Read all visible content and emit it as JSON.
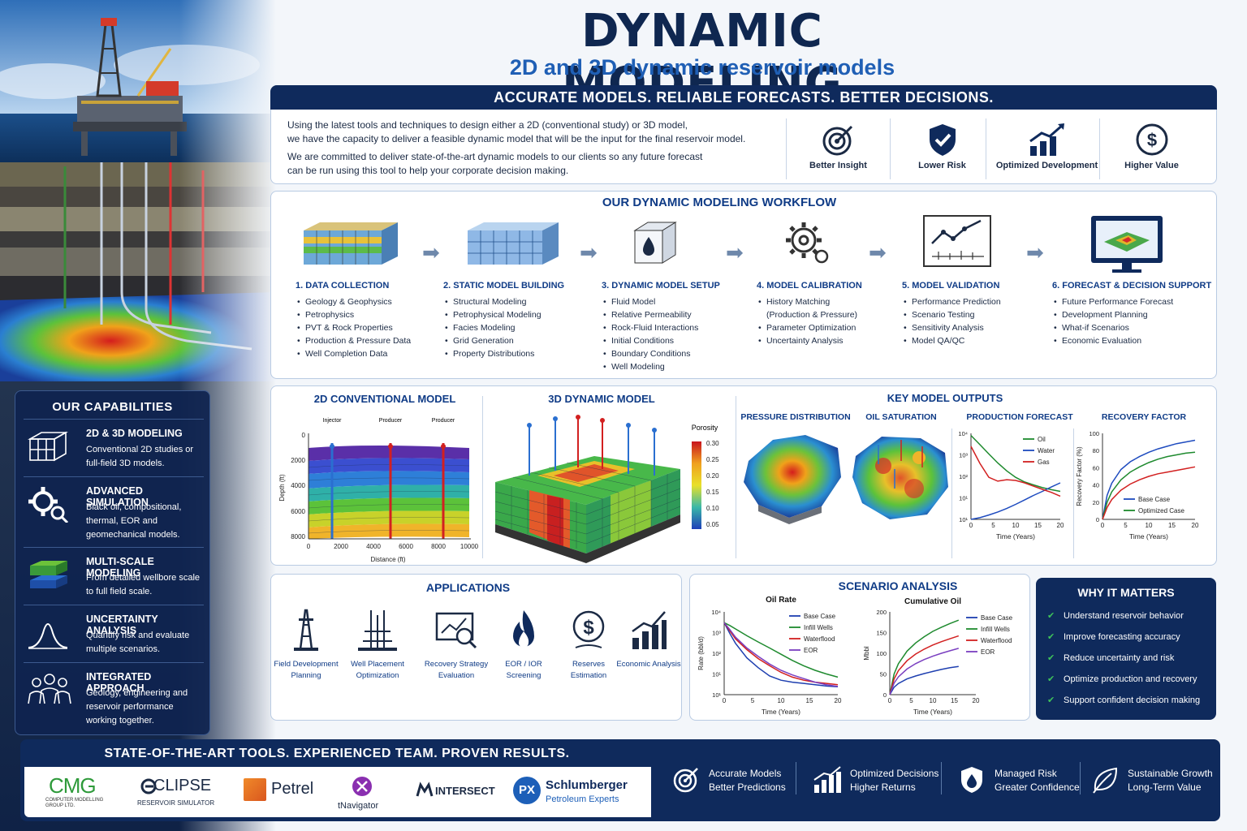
{
  "header": {
    "title": "DYNAMIC MODELING",
    "subtitle": "2D and 3D dynamic reservoir models"
  },
  "intro": {
    "banner": "ACCURATE MODELS. RELIABLE FORECASTS. BETTER DECISIONS.",
    "p1a": "Using the latest tools and techniques to design either a 2D (conventional study) or 3D model,",
    "p1b": "we have the capacity to deliver a feasible dynamic model that will be the input for the final reservoir model.",
    "p2a": "We are committed to deliver state-of-the-art dynamic models to our clients so any future forecast",
    "p2b": "can be run using this tool to help your corporate decision making.",
    "benefits": [
      {
        "label": "Better Insight",
        "icon": "target-icon"
      },
      {
        "label": "Lower Risk",
        "icon": "shield-check-icon"
      },
      {
        "label": "Optimized Development",
        "icon": "growth-chart-icon"
      },
      {
        "label": "Higher Value",
        "icon": "dollar-icon"
      }
    ]
  },
  "workflow": {
    "title": "OUR DYNAMIC MODELING WORKFLOW",
    "steps": [
      {
        "title": "1.  DATA COLLECTION",
        "items": [
          "Geology & Geophysics",
          "Petrophysics",
          "PVT & Rock Properties",
          "Production & Pressure Data",
          "Well Completion Data"
        ]
      },
      {
        "title": "2.  STATIC MODEL BUILDING",
        "items": [
          "Structural Modeling",
          "Petrophysical Modeling",
          "Facies Modeling",
          "Grid Generation",
          "Property Distributions"
        ]
      },
      {
        "title": "3.  DYNAMIC MODEL SETUP",
        "items": [
          "Fluid Model",
          "Relative Permeability",
          "Rock-Fluid Interactions",
          "Initial Conditions",
          "Boundary Conditions",
          "Well Modeling"
        ]
      },
      {
        "title": "4.  MODEL CALIBRATION",
        "items": [
          "History Matching",
          "(Production & Pressure)",
          "Parameter Optimization",
          "Uncertainty Analysis"
        ]
      },
      {
        "title": "5.  MODEL VALIDATION",
        "items": [
          "Performance Prediction",
          "Scenario Testing",
          "Sensitivity Analysis",
          "Model QA/QC"
        ]
      },
      {
        "title": "6.  FORECAST & DECISION SUPPORT",
        "items": [
          "Future Performance Forecast",
          "Development Planning",
          "What-if Scenarios",
          "Economic Evaluation"
        ]
      }
    ]
  },
  "models": {
    "conv_title": "2D CONVENTIONAL MODEL",
    "dyn_title": "3D DYNAMIC MODEL",
    "outputs_title": "KEY MODEL OUTPUTS",
    "wells": [
      "Injector",
      "Producer",
      "Producer"
    ],
    "conv_ylabel": "Depth (ft)",
    "conv_xlabel": "Distance (ft)",
    "conv_yticks": [
      "0",
      "2000",
      "4000",
      "6000",
      "8000"
    ],
    "conv_xticks": [
      "0",
      "2000",
      "4000",
      "6000",
      "8000",
      "10000"
    ],
    "porosity_label": "Porosity",
    "porosity_ticks": [
      "0.30",
      "0.25",
      "0.20",
      "0.15",
      "0.10",
      "0.05"
    ],
    "pressure_title": "PRESSURE DISTRIBUTION",
    "saturation_title": "OIL SATURATION",
    "prod_title": "PRODUCTION FORECAST",
    "rf_title": "RECOVERY FACTOR"
  },
  "chart_data": [
    {
      "type": "line",
      "title": "PRODUCTION FORECAST",
      "xlabel": "Time (Years)",
      "ylabel": "Rate (bbl/d)",
      "log_y": true,
      "xlim": [
        0,
        20
      ],
      "ylim": [
        1,
        10000
      ],
      "x_ticks": [
        "0",
        "5",
        "10",
        "15",
        "20"
      ],
      "y_ticks": [
        "10⁴",
        "10³",
        "10²",
        "10¹",
        "10¹"
      ],
      "legend": "top-right",
      "series": [
        {
          "name": "Oil",
          "color": "#1e8a2e",
          "x": [
            0,
            2,
            4,
            6,
            8,
            10,
            12,
            14,
            16,
            18,
            20
          ],
          "y": [
            8000,
            3000,
            1100,
            420,
            180,
            90,
            55,
            40,
            30,
            24,
            20
          ]
        },
        {
          "name": "Water",
          "color": "#1e4bbf",
          "x": [
            0,
            2,
            4,
            6,
            8,
            10,
            12,
            14,
            16,
            18,
            20
          ],
          "y": [
            1,
            1.2,
            1.6,
            2.2,
            3.2,
            5,
            8,
            13,
            20,
            32,
            50
          ]
        },
        {
          "name": "Gas",
          "color": "#d22020",
          "x": [
            0,
            2,
            4,
            6,
            8,
            10,
            12,
            14,
            16,
            18,
            20
          ],
          "y": [
            2500,
            400,
            90,
            60,
            70,
            65,
            50,
            35,
            25,
            18,
            12
          ]
        }
      ]
    },
    {
      "type": "line",
      "title": "RECOVERY FACTOR",
      "xlabel": "Time (Years)",
      "ylabel": "Recovery Factor (%)",
      "xlim": [
        0,
        20
      ],
      "ylim": [
        0,
        100
      ],
      "x_ticks": [
        "0",
        "5",
        "10",
        "15",
        "20"
      ],
      "y_ticks": [
        "0",
        "20",
        "40",
        "60",
        "80",
        "100"
      ],
      "legend": "bottom-right",
      "series": [
        {
          "name": "Base Case",
          "color": "#1e4bbf",
          "x": [
            0,
            1,
            2,
            4,
            6,
            8,
            10,
            12,
            14,
            16,
            18,
            20
          ],
          "y": [
            0,
            28,
            42,
            58,
            67,
            73,
            78,
            82,
            85,
            88,
            90,
            92
          ]
        },
        {
          "name": "Optimized Case",
          "color": "#1e8a2e",
          "x": [
            0,
            1,
            2,
            4,
            6,
            8,
            10,
            12,
            14,
            16,
            18,
            20
          ],
          "y": [
            0,
            20,
            32,
            46,
            55,
            61,
            66,
            70,
            73,
            75,
            77,
            78
          ]
        },
        {
          "name": "",
          "color": "#d22020",
          "x": [
            0,
            1,
            2,
            4,
            6,
            8,
            10,
            12,
            14,
            16,
            18,
            20
          ],
          "y": [
            0,
            14,
            23,
            34,
            41,
            46,
            50,
            53,
            55,
            57,
            59,
            61
          ]
        }
      ]
    },
    {
      "type": "line",
      "title": "Oil Rate",
      "xlabel": "Time (Years)",
      "ylabel": "Rate (bbl/d)",
      "log_y": true,
      "xlim": [
        0,
        20
      ],
      "ylim": [
        1,
        10000
      ],
      "x_ticks": [
        "0",
        "5",
        "10",
        "15",
        "20"
      ],
      "y_ticks": [
        "10⁴",
        "10³",
        "10²",
        "10¹",
        "10¹"
      ],
      "legend": "top-right",
      "series": [
        {
          "name": "Base Case",
          "color": "#1e3fb0",
          "x": [
            0,
            1,
            2,
            4,
            6,
            8,
            10,
            12,
            14,
            16,
            18,
            20
          ],
          "y": [
            3000,
            900,
            300,
            60,
            20,
            8,
            5,
            4,
            3.5,
            3,
            2.6,
            2.4
          ]
        },
        {
          "name": "Infill Wells",
          "color": "#1e8a2e",
          "x": [
            0,
            1,
            2,
            4,
            6,
            8,
            10,
            12,
            14,
            16,
            18,
            20
          ],
          "y": [
            3000,
            2200,
            1500,
            700,
            350,
            180,
            90,
            45,
            25,
            15,
            10,
            7
          ]
        },
        {
          "name": "Waterflood",
          "color": "#d22020",
          "x": [
            0,
            1,
            2,
            4,
            6,
            8,
            10,
            12,
            14,
            16,
            18,
            20
          ],
          "y": [
            3000,
            1200,
            500,
            150,
            55,
            25,
            12,
            7,
            5,
            4,
            3.5,
            3
          ]
        },
        {
          "name": "EOR",
          "color": "#7a3fc0",
          "x": [
            0,
            1,
            2,
            4,
            6,
            8,
            10,
            12,
            14,
            16,
            18,
            20
          ],
          "y": [
            3000,
            1400,
            600,
            180,
            70,
            30,
            15,
            9,
            6,
            4,
            3,
            2.5
          ]
        }
      ]
    },
    {
      "type": "line",
      "title": "Cumulative Oil",
      "xlabel": "Time (Years)",
      "ylabel": "Mbbl",
      "xlim": [
        0,
        20
      ],
      "ylim": [
        0,
        200
      ],
      "x_ticks": [
        "0",
        "5",
        "10",
        "15",
        "20"
      ],
      "y_ticks": [
        "0",
        "50",
        "100",
        "150",
        "200"
      ],
      "legend": "top-right",
      "series": [
        {
          "name": "Base Case",
          "color": "#1e3fb0",
          "x": [
            0,
            1,
            2,
            4,
            6,
            8,
            10,
            12,
            14,
            16
          ],
          "y": [
            0,
            18,
            27,
            38,
            45,
            51,
            56,
            61,
            65,
            68
          ]
        },
        {
          "name": "Infill Wells",
          "color": "#1e8a2e",
          "x": [
            0,
            1,
            2,
            4,
            6,
            8,
            10,
            12,
            14,
            16
          ],
          "y": [
            0,
            50,
            75,
            105,
            125,
            140,
            153,
            163,
            172,
            180
          ]
        },
        {
          "name": "Waterflood",
          "color": "#d22020",
          "x": [
            0,
            1,
            2,
            4,
            6,
            8,
            10,
            12,
            14,
            16
          ],
          "y": [
            0,
            38,
            58,
            82,
            98,
            110,
            120,
            128,
            135,
            142
          ]
        },
        {
          "name": "EOR",
          "color": "#7a3fc0",
          "x": [
            0,
            1,
            2,
            4,
            6,
            8,
            10,
            12,
            14,
            16
          ],
          "y": [
            0,
            28,
            43,
            62,
            75,
            85,
            93,
            100,
            106,
            112
          ]
        }
      ]
    }
  ],
  "capabilities": {
    "title": "OUR CAPABILITIES",
    "items": [
      {
        "title": "2D & 3D MODELING",
        "desc": "Conventional 2D studies or full-field 3D models.",
        "icon": "grid-cube-icon"
      },
      {
        "title": "ADVANCED SIMULATION",
        "desc": "Black oil, compositional, thermal, EOR and geomechanical models.",
        "icon": "gears-icon"
      },
      {
        "title": "MULTI-SCALE MODELING",
        "desc": "From detailed wellbore scale to full field scale.",
        "icon": "layers-icon"
      },
      {
        "title": "UNCERTAINTY ANALYSIS",
        "desc": "Quantify risk and evaluate multiple scenarios.",
        "icon": "bell-curve-icon"
      },
      {
        "title": "INTEGRATED APPROACH",
        "desc": "Geology, engineering and reservoir performance working together.",
        "icon": "team-icon"
      }
    ]
  },
  "applications": {
    "title": "APPLICATIONS",
    "items": [
      {
        "label": "Field Development Planning",
        "icon": "derrick-icon"
      },
      {
        "label": "Well Placement Optimization",
        "icon": "well-placement-icon"
      },
      {
        "label": "Recovery Strategy Evaluation",
        "icon": "analysis-icon"
      },
      {
        "label": "EOR / IOR Screening",
        "icon": "flame-icon"
      },
      {
        "label": "Reserves Estimation",
        "icon": "dollar-icon"
      },
      {
        "label": "Economic Analysis",
        "icon": "bar-growth-icon"
      }
    ]
  },
  "scenario": {
    "title": "SCENARIO ANALYSIS"
  },
  "why": {
    "title": "WHY IT MATTERS",
    "items": [
      "Understand reservoir behavior",
      "Improve forecasting accuracy",
      "Reduce uncertainty and risk",
      "Optimize production and recovery",
      "Support confident decision making"
    ]
  },
  "footer": {
    "tagline": "STATE-OF-THE-ART TOOLS. EXPERIENCED TEAM. PROVEN RESULTS.",
    "logos": {
      "cmg": "CMG",
      "cmg_sub1": "COMPUTER MODELLING",
      "cmg_sub2": "GROUP LTD.",
      "eclipse": "CLIPSE",
      "eclipse_sub": "RESERVOIR SIMULATOR",
      "petrel": "Petrel",
      "tnav": "tNavigator",
      "intersect": "INTERSECT",
      "px": "PX",
      "slb": "Schlumberger",
      "slb_sub": "Petroleum Experts"
    },
    "values": [
      {
        "l1": "Accurate Models",
        "l2": "Better Predictions",
        "icon": "target-icon"
      },
      {
        "l1": "Optimized Decisions",
        "l2": "Higher Returns",
        "icon": "growth-chart-icon"
      },
      {
        "l1": "Managed Risk",
        "l2": "Greater Confidence",
        "icon": "shield-drop-icon"
      },
      {
        "l1": "Sustainable Growth",
        "l2": "Long-Term Value",
        "icon": "leaf-icon"
      }
    ]
  }
}
